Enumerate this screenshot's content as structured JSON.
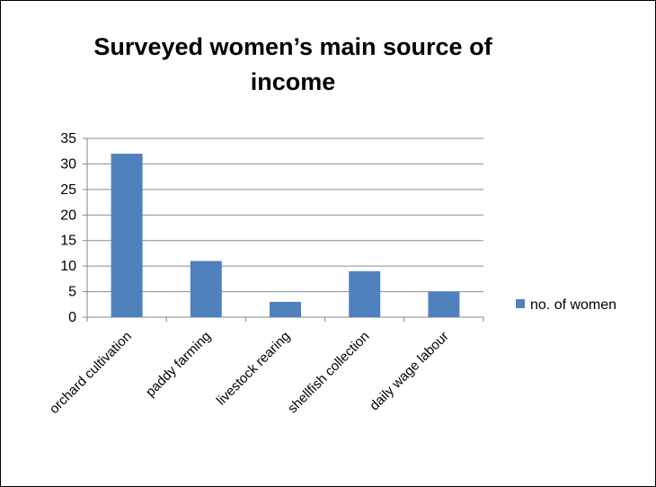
{
  "chart_data": {
    "type": "bar",
    "title": "Surveyed women’s main source of income",
    "categories": [
      "orchard cultivation",
      "paddy farming",
      "livestock rearing",
      "shellfish collection",
      "daily wage labour"
    ],
    "series": [
      {
        "name": "no. of women",
        "values": [
          32,
          11,
          3,
          9,
          5
        ],
        "color": "#4f81bd"
      }
    ],
    "ylim": [
      0,
      35
    ],
    "yticks": [
      0,
      5,
      10,
      15,
      20,
      25,
      30,
      35
    ],
    "grid": true,
    "legend_position": "right"
  }
}
